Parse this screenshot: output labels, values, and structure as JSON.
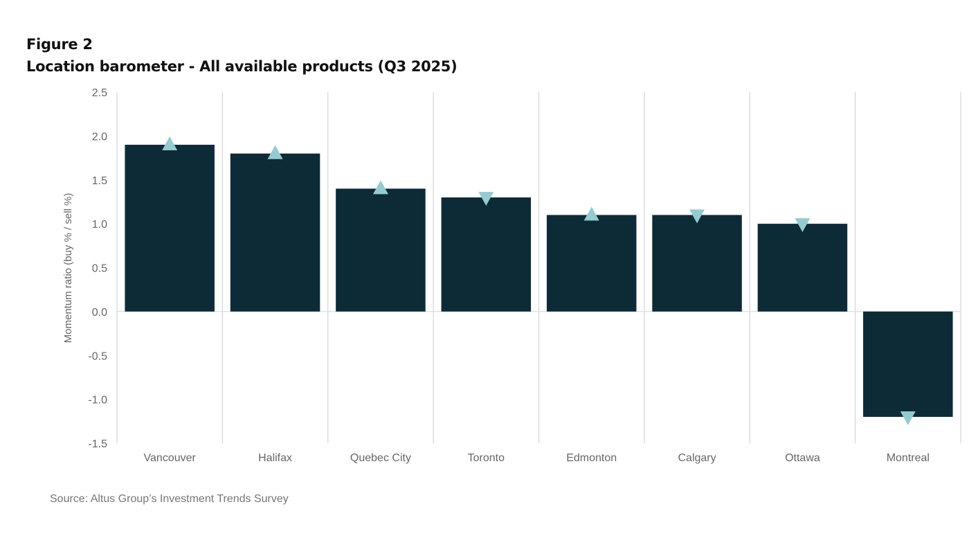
{
  "figure": {
    "label": "Figure 2",
    "title": "Location barometer - All available products (Q3 2025)",
    "source": "Source:  Altus Group’s Investment Trends Survey"
  },
  "colors": {
    "bar": "#0d2b36",
    "marker": "#93cbd0",
    "gridline": "#d4d4d4",
    "zero_line": "#d8e3e6",
    "text": "#666666"
  },
  "chart_data": {
    "type": "bar",
    "title": "Location barometer - All available products (Q3 2025)",
    "xlabel": "",
    "ylabel": "Momentum ratio  (buy % / sell %)",
    "ylim": [
      -1.5,
      2.5
    ],
    "yticks": [
      2.5,
      2.0,
      1.5,
      1.0,
      0.5,
      0.0,
      -0.5,
      -1.0,
      -1.5
    ],
    "ytick_labels": [
      "2.5",
      "2.0",
      "1.5",
      "1.0",
      "0.5",
      "0.0",
      "-0.5",
      "-1.0",
      "-1.5"
    ],
    "grid": "vertical category separators",
    "legend": "none",
    "categories": [
      "Vancouver",
      "Halifax",
      "Quebec City",
      "Toronto",
      "Edmonton",
      "Calgary",
      "Ottawa",
      "Montreal"
    ],
    "values": [
      1.9,
      1.8,
      1.4,
      1.3,
      1.1,
      1.1,
      1.0,
      -1.2
    ],
    "trend_markers": [
      "up",
      "up",
      "up",
      "down",
      "up",
      "down",
      "down",
      "down"
    ],
    "marker_meaning": "triangle direction indicates momentum change vs prior quarter"
  }
}
